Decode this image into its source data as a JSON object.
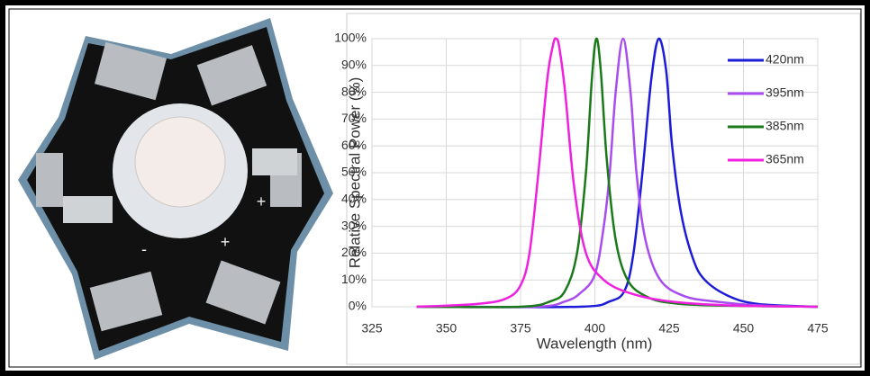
{
  "photo": {
    "labels": [
      "+",
      "+",
      "-"
    ]
  },
  "chart_data": {
    "type": "line",
    "xlabel": "Wavelength (nm)",
    "ylabel": "Relative Spectral Power (%)",
    "xlim": [
      325,
      475
    ],
    "xticks": [
      325,
      350,
      375,
      400,
      425,
      450,
      475
    ],
    "ylim": [
      0,
      100
    ],
    "yticks": [
      {
        "value": 0,
        "label": "0%"
      },
      {
        "value": 10,
        "label": "10%"
      },
      {
        "value": 20,
        "label": "20%"
      },
      {
        "value": 30,
        "label": "30%"
      },
      {
        "value": 40,
        "label": "40%"
      },
      {
        "value": 50,
        "label": "50%"
      },
      {
        "value": 60,
        "label": "60%"
      },
      {
        "value": 70,
        "label": "70%"
      },
      {
        "value": 80,
        "label": "80%"
      },
      {
        "value": 90,
        "label": "90%"
      },
      {
        "value": 100,
        "label": "100%"
      }
    ],
    "grid": true,
    "legend": "upper right",
    "series": [
      {
        "name": "420nm",
        "color": "#1c1cd8",
        "x": [
          350,
          395,
          405,
          410,
          413,
          416,
          419,
          421.5,
          424,
          426,
          429,
          433,
          437,
          445,
          455,
          475
        ],
        "values": [
          0,
          0,
          2,
          6,
          20,
          50,
          85,
          100,
          88,
          60,
          35,
          18,
          10,
          4,
          1,
          0
        ]
      },
      {
        "name": "395nm",
        "color": "#a84cf0",
        "x": [
          340,
          380,
          390,
          395,
          400,
          403,
          405,
          407,
          409.5,
          412,
          414,
          417,
          422,
          430,
          440,
          455,
          475
        ],
        "values": [
          0,
          0,
          2,
          5,
          12,
          30,
          50,
          80,
          100,
          80,
          50,
          25,
          10,
          4,
          2,
          0.5,
          0
        ]
      },
      {
        "name": "385nm",
        "color": "#1a7a1a",
        "x": [
          340,
          375,
          385,
          390,
          394,
          397,
          399,
          400.5,
          402,
          404,
          407,
          411,
          417,
          425,
          440,
          475
        ],
        "values": [
          0,
          0,
          2,
          6,
          20,
          50,
          85,
          100,
          88,
          55,
          25,
          10,
          4,
          1.5,
          0.5,
          0
        ]
      },
      {
        "name": "365nm",
        "color": "#f020e0",
        "x": [
          340,
          360,
          370,
          375,
          378,
          381,
          384,
          386,
          387,
          388,
          390,
          393,
          397,
          403,
          412,
          425,
          445,
          475
        ],
        "values": [
          0,
          1,
          3,
          8,
          20,
          50,
          85,
          98,
          100,
          97,
          80,
          45,
          20,
          10,
          5,
          2,
          0.5,
          0
        ]
      }
    ]
  }
}
